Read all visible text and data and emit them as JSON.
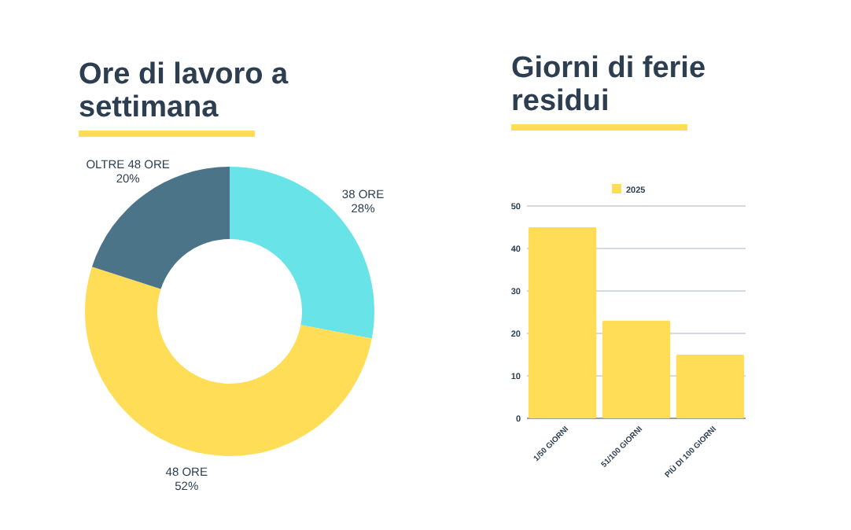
{
  "chart_data": [
    {
      "type": "donut",
      "title": "Ore di lavoro a settimana",
      "categories": [
        "38 ORE",
        "48 ORE",
        "OLTRE 48 ORE"
      ],
      "values": [
        28,
        52,
        20
      ],
      "colors": [
        "#68e4e8",
        "#ffdd57",
        "#4c7489"
      ],
      "value_labels": [
        "28%",
        "52%",
        "20%"
      ]
    },
    {
      "type": "bar",
      "title": "Giorni di ferie residui",
      "categories": [
        "1/50 GIORNI",
        "51/100 GIORNI",
        "PIÙ DI 100 GIORNI"
      ],
      "series": [
        {
          "name": "2025",
          "color": "#ffdd57",
          "values": [
            45,
            23,
            15
          ]
        }
      ],
      "ylim": [
        0,
        50
      ],
      "yticks": [
        0,
        10,
        20,
        30,
        40,
        50
      ],
      "grid": "y",
      "legend": "top"
    }
  ]
}
